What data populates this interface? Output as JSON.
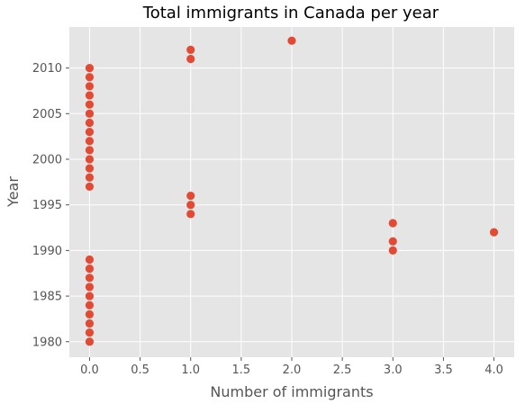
{
  "chart_data": {
    "type": "scatter",
    "title": "Total immigrants in Canada per year",
    "xlabel": "Number of immigrants",
    "ylabel": "Year",
    "xlim": [
      -0.2,
      4.2
    ],
    "ylim": [
      1978.3,
      2014.5
    ],
    "xticks": [
      "0.0",
      "0.5",
      "1.0",
      "1.5",
      "2.0",
      "2.5",
      "3.0",
      "3.5",
      "4.0"
    ],
    "yticks": [
      "1980",
      "1985",
      "1990",
      "1995",
      "2000",
      "2005",
      "2010"
    ],
    "grid": true,
    "background": "#e5e5e5",
    "grid_color": "#ffffff",
    "point_color": "#e24a33",
    "points": [
      {
        "x": 0,
        "y": 1980
      },
      {
        "x": 0,
        "y": 1981
      },
      {
        "x": 0,
        "y": 1982
      },
      {
        "x": 0,
        "y": 1983
      },
      {
        "x": 0,
        "y": 1984
      },
      {
        "x": 0,
        "y": 1985
      },
      {
        "x": 0,
        "y": 1986
      },
      {
        "x": 0,
        "y": 1987
      },
      {
        "x": 0,
        "y": 1988
      },
      {
        "x": 0,
        "y": 1989
      },
      {
        "x": 3,
        "y": 1990
      },
      {
        "x": 3,
        "y": 1991
      },
      {
        "x": 4,
        "y": 1992
      },
      {
        "x": 3,
        "y": 1993
      },
      {
        "x": 1,
        "y": 1994
      },
      {
        "x": 1,
        "y": 1995
      },
      {
        "x": 1,
        "y": 1996
      },
      {
        "x": 0,
        "y": 1997
      },
      {
        "x": 0,
        "y": 1998
      },
      {
        "x": 0,
        "y": 1999
      },
      {
        "x": 0,
        "y": 2000
      },
      {
        "x": 0,
        "y": 2001
      },
      {
        "x": 0,
        "y": 2002
      },
      {
        "x": 0,
        "y": 2003
      },
      {
        "x": 0,
        "y": 2004
      },
      {
        "x": 0,
        "y": 2005
      },
      {
        "x": 0,
        "y": 2006
      },
      {
        "x": 0,
        "y": 2007
      },
      {
        "x": 0,
        "y": 2008
      },
      {
        "x": 0,
        "y": 2009
      },
      {
        "x": 0,
        "y": 2010
      },
      {
        "x": 1,
        "y": 2011
      },
      {
        "x": 1,
        "y": 2012
      },
      {
        "x": 2,
        "y": 2013
      }
    ]
  }
}
